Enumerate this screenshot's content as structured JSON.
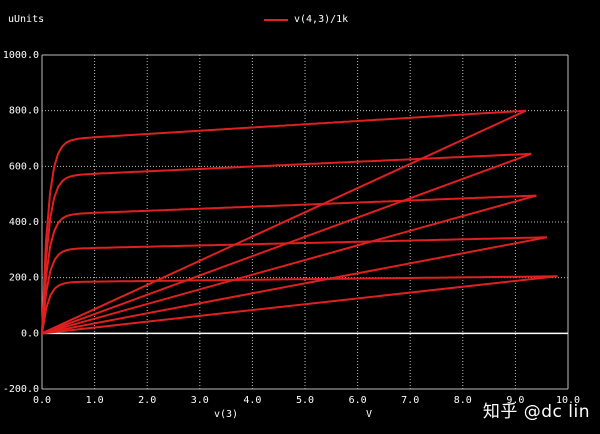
{
  "chart_data": {
    "type": "line",
    "ylabel": "uUnits",
    "xlabel": "v(3)",
    "x_unit": "V",
    "legend": [
      "v(4,3)/1k"
    ],
    "legend_position": "top-center",
    "series_color": "#e02020",
    "grid": true,
    "xlim": [
      0.0,
      10.0
    ],
    "ylim": [
      -200.0,
      1000.0
    ],
    "x_ticks": [
      "0.0",
      "1.0",
      "2.0",
      "3.0",
      "4.0",
      "5.0",
      "6.0",
      "7.0",
      "8.0",
      "9.0",
      "10.0"
    ],
    "y_ticks": [
      "-200.0",
      "0.0",
      "200.0",
      "400.0",
      "600.0",
      "800.0",
      "1000.0"
    ],
    "series": [
      {
        "x_end": 9.2,
        "saturation": 700,
        "y_end": 800
      },
      {
        "x_end": 9.3,
        "saturation": 570,
        "y_end": 645
      },
      {
        "x_end": 9.4,
        "saturation": 430,
        "y_end": 495
      },
      {
        "x_end": 9.6,
        "saturation": 305,
        "y_end": 345
      },
      {
        "x_end": 9.8,
        "saturation": 185,
        "y_end": 205
      }
    ]
  },
  "watermark": "知乎 @dc lin"
}
